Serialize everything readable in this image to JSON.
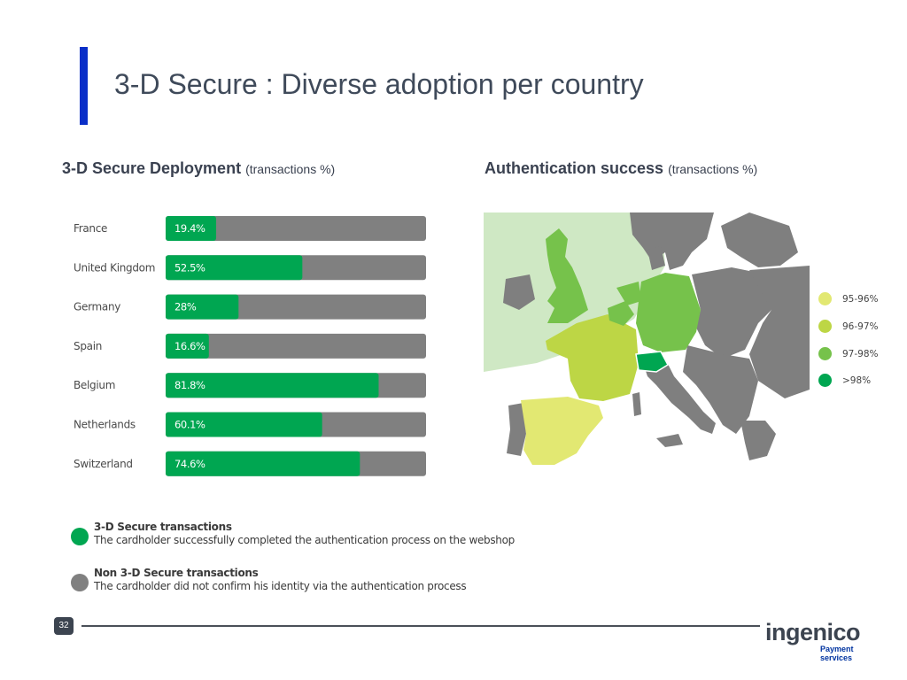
{
  "slide": {
    "title": "3-D Secure : Diverse adoption per country",
    "page_number": "32"
  },
  "deployment": {
    "heading": "3-D Secure Deployment",
    "heading_sub": "(transactions %)"
  },
  "auth": {
    "heading": "Authentication success",
    "heading_sub": "(transactions %)",
    "legend": [
      {
        "label": "95-96%",
        "color": "#e2e872"
      },
      {
        "label": "96-97%",
        "color": "#bdd645"
      },
      {
        "label": "97-98%",
        "color": "#76c24b"
      },
      {
        "label": ">98%",
        "color": "#00a651"
      }
    ],
    "countries": [
      {
        "name": "United Kingdom",
        "band": "97-98%"
      },
      {
        "name": "Belgium",
        "band": "97-98%"
      },
      {
        "name": "Netherlands",
        "band": "97-98%"
      },
      {
        "name": "Germany",
        "band": "97-98%"
      },
      {
        "name": "France",
        "band": "96-97%"
      },
      {
        "name": "Spain",
        "band": "95-96%"
      },
      {
        "name": "Switzerland",
        "band": ">98%"
      }
    ]
  },
  "legend": {
    "secure_title": "3-D Secure transactions",
    "secure_desc": "The cardholder successfully completed the authentication process on the webshop",
    "non_secure_title": "Non 3-D Secure transactions",
    "non_secure_desc": "The cardholder did not confirm his identity via the authentication process"
  },
  "colors": {
    "secure": "#00a651",
    "non_secure": "#808080",
    "title_bar": "#0a2fc8",
    "map_other": "#7f7f7f",
    "map_sea": "#cfe8c4"
  },
  "chart_data": {
    "type": "bar",
    "orientation": "horizontal",
    "stacked": true,
    "categories": [
      "France",
      "United Kingdom",
      "Germany",
      "Spain",
      "Belgium",
      "Netherlands",
      "Switzerland"
    ],
    "series": [
      {
        "name": "3-D Secure transactions",
        "values": [
          19.4,
          52.5,
          28,
          16.6,
          81.8,
          60.1,
          74.6
        ],
        "color": "#00a651"
      },
      {
        "name": "Non 3-D Secure transactions",
        "values": [
          80.6,
          47.5,
          72,
          83.4,
          18.2,
          39.9,
          25.4
        ],
        "color": "#808080"
      }
    ],
    "value_labels": [
      "19.4%",
      "52.5%",
      "28%",
      "16.6%",
      "81.8%",
      "60.1%",
      "74.6%"
    ],
    "xlim": [
      0,
      100
    ]
  },
  "footer": {
    "brand": "ingenico",
    "brand_sub_1": "Payment",
    "brand_sub_2": "services"
  }
}
